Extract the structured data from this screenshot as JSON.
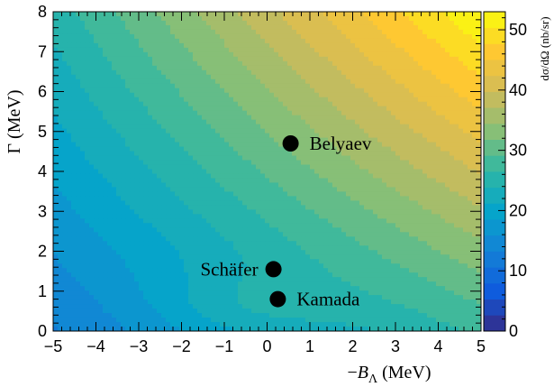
{
  "chart_data": {
    "type": "heatmap",
    "title": "",
    "xlabel": "−B_Λ (MeV)",
    "xlabel_parts": {
      "minus": "−",
      "symbol": "B",
      "sub": "Λ",
      "unit": " (MeV)"
    },
    "ylabel": "Γ (MeV)",
    "zlabel": "dσ/dΩ (nb/sr)",
    "xlim": [
      -5,
      5
    ],
    "ylim": [
      0,
      8
    ],
    "zlim": [
      0,
      53
    ],
    "x_ticks": [
      "−5",
      "−4",
      "−3",
      "−2",
      "−1",
      "0",
      "1",
      "2",
      "3",
      "4",
      "5"
    ],
    "x_tick_values": [
      -5,
      -4,
      -3,
      -2,
      -1,
      0,
      1,
      2,
      3,
      4,
      5
    ],
    "y_ticks": [
      "0",
      "1",
      "2",
      "3",
      "4",
      "5",
      "6",
      "7",
      "8"
    ],
    "y_tick_values": [
      0,
      1,
      2,
      3,
      4,
      5,
      6,
      7,
      8
    ],
    "z_ticks": [
      "0",
      "10",
      "20",
      "30",
      "40",
      "50"
    ],
    "z_tick_values": [
      0,
      10,
      20,
      30,
      40,
      50
    ],
    "contour_levels": 20,
    "colormap": [
      "#352a87",
      "#0f5cdd",
      "#1481d6",
      "#06a4ca",
      "#2eb7a4",
      "#87bf77",
      "#d1bb59",
      "#fec832",
      "#f9fb0e"
    ],
    "grid_corner_values": {
      "x_-5_y_0": 13,
      "x_5_y_0": 27,
      "x_-5_y_8": 25,
      "x_5_y_8": 53
    },
    "points": [
      {
        "name": "Belyaev",
        "x": 0.55,
        "y": 4.7
      },
      {
        "name": "Schäfer",
        "x": 0.15,
        "y": 1.55
      },
      {
        "name": "Kamada",
        "x": 0.25,
        "y": 0.8
      }
    ]
  }
}
